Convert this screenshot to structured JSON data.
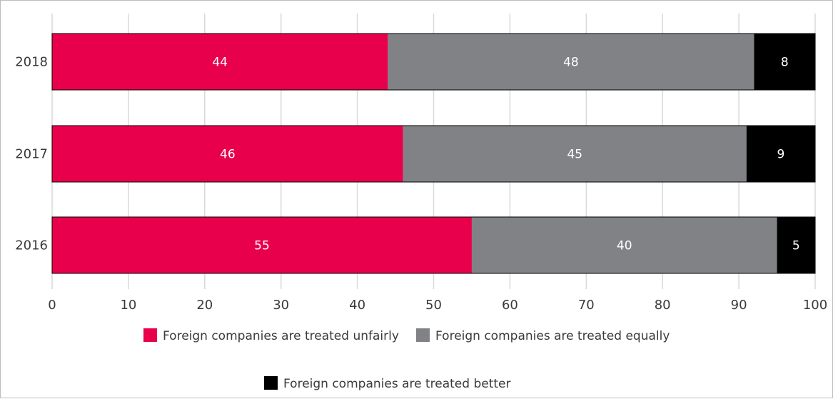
{
  "chart_data": {
    "type": "bar",
    "orientation": "horizontal",
    "stacked": true,
    "categories": [
      "2018",
      "2017",
      "2016"
    ],
    "series": [
      {
        "name": "Foreign companies are treated unfairly",
        "values": [
          44,
          46,
          55
        ],
        "color": "#e8004c"
      },
      {
        "name": "Foreign companies are treated equally",
        "values": [
          48,
          45,
          40
        ],
        "color": "#808285"
      },
      {
        "name": "Foreign companies are treated better",
        "values": [
          8,
          9,
          5
        ],
        "color": "#000000"
      }
    ],
    "title": "",
    "xlabel": "",
    "ylabel": "",
    "xlim": [
      0,
      100
    ],
    "xticks": [
      0,
      10,
      20,
      30,
      40,
      50,
      60,
      70,
      80,
      90,
      100
    ],
    "grid": "vertical",
    "legend_position": "bottom"
  }
}
